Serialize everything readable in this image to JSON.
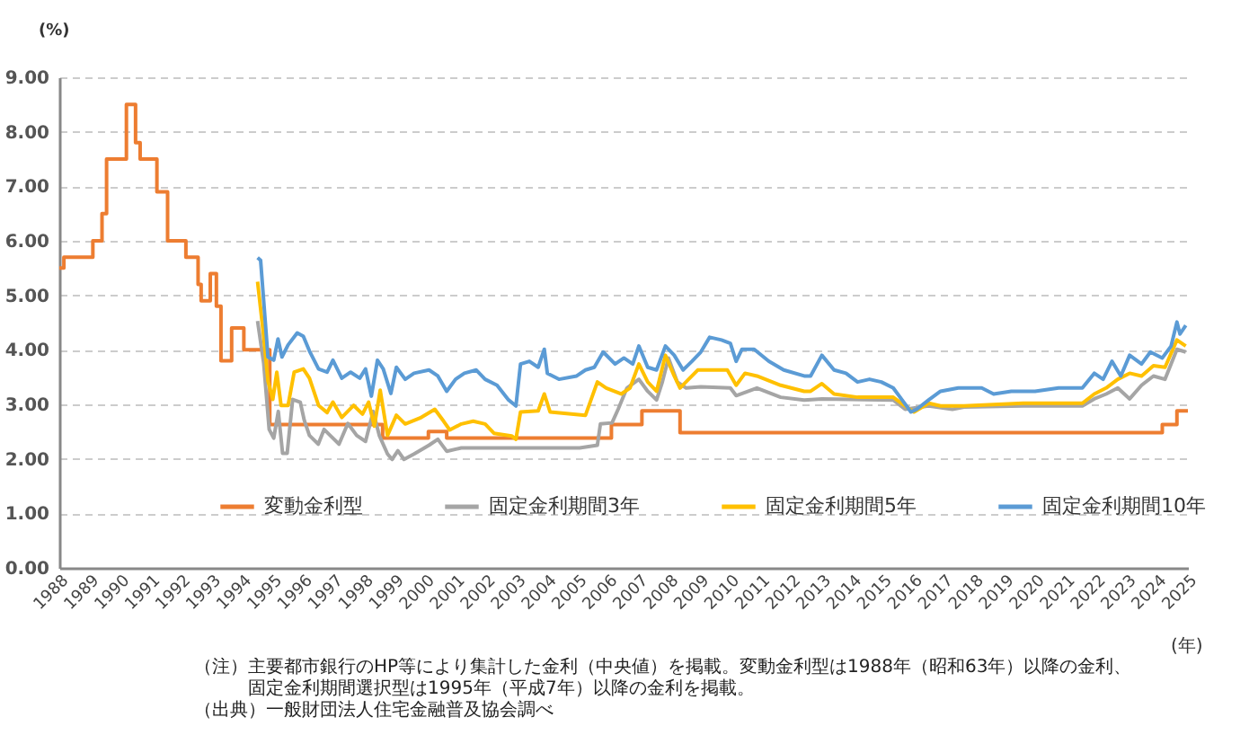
{
  "chart_data": {
    "type": "line",
    "ylabel": "(%)",
    "xlabel": "(年)",
    "xlim": [
      1988,
      2025
    ],
    "xticks": [
      1988,
      1989,
      1990,
      1991,
      1992,
      1993,
      1994,
      1995,
      1996,
      1997,
      1998,
      1999,
      2000,
      2001,
      2002,
      2003,
      2004,
      2005,
      2006,
      2007,
      2008,
      2009,
      2010,
      2011,
      2012,
      2013,
      2014,
      2015,
      2016,
      2017,
      2018,
      2019,
      2020,
      2021,
      2022,
      2023,
      2024,
      2025
    ],
    "ylim": [
      0,
      9
    ],
    "yticks": [
      {
        "value": 0,
        "label": "0.00"
      },
      {
        "value": 1,
        "label": "1.00"
      },
      {
        "value": 2,
        "label": "2.00"
      },
      {
        "value": 3,
        "label": "3.00"
      },
      {
        "value": 4,
        "label": "4.00"
      },
      {
        "value": 5,
        "label": "5.00"
      },
      {
        "value": 6,
        "label": "6.00"
      },
      {
        "value": 7,
        "label": "7.00"
      },
      {
        "value": 8,
        "label": "8.00"
      },
      {
        "value": 9,
        "label": "9.00"
      }
    ],
    "grid": "y",
    "legend": "bottom",
    "series": [
      {
        "name": "変動金利型",
        "type": "step",
        "color": "#ed7d31",
        "x": [
          1988,
          1988.15,
          1989.1,
          1989.4,
          1989.55,
          1990.2,
          1990.5,
          1990.65,
          1991.2,
          1991.55,
          1992.15,
          1992.55,
          1992.65,
          1992.95,
          1993.15,
          1993.3,
          1993.65,
          1994.05,
          1994.9,
          1998.6,
          2000.1,
          2000.7,
          2006.1,
          2007.1,
          2008.35,
          2024.16,
          2024.64,
          2025
        ],
        "values": [
          5.5,
          5.7,
          6.0,
          6.5,
          7.5,
          8.5,
          7.8,
          7.5,
          6.9,
          6.0,
          5.7,
          5.2,
          4.9,
          5.4,
          4.8,
          3.8,
          4.4,
          4.0,
          2.63,
          2.38,
          2.5,
          2.38,
          2.63,
          2.88,
          2.48,
          2.63,
          2.88,
          2.88
        ]
      },
      {
        "name": "固定金利期間3年",
        "color": "#a5a5a5",
        "x": [
          1994.5,
          1994.7,
          1994.88,
          1995.03,
          1995.18,
          1995.32,
          1995.47,
          1995.65,
          1995.9,
          1996.03,
          1996.2,
          1996.49,
          1996.68,
          1996.88,
          1997.17,
          1997.46,
          1997.75,
          1998.04,
          1998.29,
          1998.49,
          1998.76,
          1998.91,
          1999.1,
          1999.3,
          1999.63,
          2000.12,
          2000.41,
          2000.7,
          2001.18,
          2005.06,
          2005.64,
          2005.74,
          2006.12,
          2006.32,
          2006.61,
          2007.0,
          2007.29,
          2007.58,
          2007.77,
          2007.97,
          2008.26,
          2008.55,
          2009.03,
          2010.0,
          2010.19,
          2010.87,
          2011.65,
          2012.42,
          2013.0,
          2015.34,
          2015.73,
          2016.5,
          2017.28,
          2017.66,
          2019.6,
          2021.54,
          2021.93,
          2022.32,
          2022.7,
          2023.09,
          2023.48,
          2023.87,
          2024.25,
          2024.64,
          2024.93
        ],
        "values": [
          4.53,
          3.76,
          2.54,
          2.38,
          2.87,
          2.1,
          2.1,
          3.09,
          3.04,
          2.71,
          2.43,
          2.27,
          2.54,
          2.43,
          2.27,
          2.65,
          2.43,
          2.32,
          2.87,
          2.43,
          2.09,
          1.99,
          2.15,
          1.99,
          2.09,
          2.25,
          2.36,
          2.14,
          2.2,
          2.2,
          2.25,
          2.64,
          2.66,
          2.91,
          3.3,
          3.46,
          3.24,
          3.08,
          3.41,
          3.85,
          3.41,
          3.3,
          3.32,
          3.3,
          3.16,
          3.3,
          3.13,
          3.08,
          3.1,
          3.08,
          2.91,
          2.97,
          2.91,
          2.95,
          2.97,
          2.97,
          3.1,
          3.19,
          3.3,
          3.1,
          3.35,
          3.52,
          3.46,
          4.01,
          3.96
        ]
      },
      {
        "name": "固定金利期間5年",
        "color": "#ffc000",
        "x": [
          1994.5,
          1994.69,
          1994.84,
          1995.0,
          1995.13,
          1995.27,
          1995.5,
          1995.7,
          1996.0,
          1996.2,
          1996.5,
          1996.78,
          1996.97,
          1997.26,
          1997.65,
          1997.94,
          1998.14,
          1998.33,
          1998.52,
          1998.76,
          1999.05,
          1999.34,
          1999.83,
          2000.31,
          2000.6,
          2000.8,
          2001.18,
          2001.57,
          2001.96,
          2002.25,
          2002.83,
          2002.97,
          2003.12,
          2003.7,
          2003.9,
          2004.09,
          2005.25,
          2005.64,
          2005.93,
          2006.42,
          2006.71,
          2007.0,
          2007.29,
          2007.58,
          2007.87,
          2008.16,
          2008.35,
          2008.93,
          2009.9,
          2010.19,
          2010.48,
          2010.87,
          2011.65,
          2012.42,
          2012.63,
          2013.0,
          2013.4,
          2014.17,
          2015.34,
          2015.73,
          2016.02,
          2016.5,
          2016.89,
          2017.66,
          2019.6,
          2021.54,
          2021.93,
          2022.32,
          2022.7,
          2023.09,
          2023.48,
          2023.87,
          2024.25,
          2024.64,
          2024.93
        ],
        "values": [
          5.25,
          4.3,
          3.43,
          3.09,
          3.59,
          2.98,
          2.98,
          3.59,
          3.65,
          3.48,
          2.98,
          2.85,
          3.04,
          2.76,
          2.98,
          2.82,
          3.04,
          2.6,
          3.26,
          2.43,
          2.8,
          2.64,
          2.75,
          2.91,
          2.69,
          2.53,
          2.64,
          2.69,
          2.64,
          2.47,
          2.42,
          2.36,
          2.86,
          2.88,
          3.19,
          2.86,
          2.8,
          3.41,
          3.3,
          3.19,
          3.3,
          3.74,
          3.41,
          3.24,
          3.9,
          3.52,
          3.3,
          3.63,
          3.63,
          3.35,
          3.57,
          3.52,
          3.35,
          3.24,
          3.24,
          3.38,
          3.19,
          3.13,
          3.13,
          2.97,
          2.86,
          3.02,
          2.97,
          2.97,
          3.02,
          3.02,
          3.19,
          3.3,
          3.46,
          3.57,
          3.52,
          3.71,
          3.68,
          4.18,
          4.07
        ]
      },
      {
        "name": "固定金利期間10年",
        "color": "#5b9bd5",
        "x": [
          1994.5,
          1994.6,
          1994.84,
          1995.03,
          1995.17,
          1995.3,
          1995.5,
          1995.8,
          1996.0,
          1996.2,
          1996.5,
          1996.78,
          1996.97,
          1997.26,
          1997.55,
          1997.85,
          1998.04,
          1998.23,
          1998.43,
          1998.62,
          1998.87,
          1999.05,
          1999.34,
          1999.63,
          2000.12,
          2000.41,
          2000.7,
          2000.99,
          2001.28,
          2001.67,
          2001.96,
          2002.35,
          2002.73,
          2002.97,
          2003.12,
          2003.41,
          2003.7,
          2003.9,
          2004.0,
          2004.38,
          2004.96,
          2005.25,
          2005.54,
          2005.83,
          2006.22,
          2006.51,
          2006.8,
          2007.0,
          2007.29,
          2007.58,
          2007.87,
          2008.16,
          2008.45,
          2008.74,
          2009.03,
          2009.32,
          2009.71,
          2010.0,
          2010.19,
          2010.38,
          2010.78,
          2011.26,
          2011.75,
          2012.42,
          2012.63,
          2013.0,
          2013.4,
          2013.79,
          2014.17,
          2014.56,
          2014.95,
          2015.34,
          2015.63,
          2015.92,
          2016.11,
          2016.5,
          2016.89,
          2017.47,
          2018.24,
          2018.63,
          2019.21,
          2019.99,
          2020.76,
          2021.54,
          2021.93,
          2022.22,
          2022.51,
          2022.8,
          2023.09,
          2023.48,
          2023.77,
          2024.16,
          2024.45,
          2024.64,
          2024.74,
          2024.93
        ],
        "values": [
          5.69,
          5.64,
          3.87,
          3.81,
          4.2,
          3.87,
          4.09,
          4.31,
          4.25,
          3.98,
          3.65,
          3.59,
          3.81,
          3.48,
          3.59,
          3.48,
          3.65,
          3.15,
          3.81,
          3.65,
          3.2,
          3.68,
          3.46,
          3.57,
          3.63,
          3.52,
          3.24,
          3.46,
          3.57,
          3.63,
          3.46,
          3.35,
          3.08,
          2.97,
          3.74,
          3.79,
          3.68,
          4.01,
          3.57,
          3.46,
          3.52,
          3.63,
          3.68,
          3.96,
          3.74,
          3.85,
          3.74,
          4.07,
          3.68,
          3.63,
          4.07,
          3.9,
          3.63,
          3.79,
          3.96,
          4.23,
          4.18,
          4.12,
          3.79,
          4.01,
          4.01,
          3.79,
          3.63,
          3.52,
          3.52,
          3.9,
          3.63,
          3.57,
          3.41,
          3.46,
          3.41,
          3.3,
          3.08,
          2.86,
          2.91,
          3.08,
          3.24,
          3.3,
          3.3,
          3.19,
          3.24,
          3.24,
          3.3,
          3.3,
          3.57,
          3.46,
          3.79,
          3.52,
          3.9,
          3.74,
          3.96,
          3.85,
          4.07,
          4.51,
          4.29,
          4.45
        ]
      }
    ],
    "annotations": [
      "（注）主要都市銀行のHP等により集計した金利（中央値）を掲載。変動金利型は1988年（昭和63年）以降の金利、固定金利期間選択型は1995年（平成7年）以降の金利を掲載。",
      "（出典）一般財団法人住宅金融普及協会調べ"
    ]
  }
}
